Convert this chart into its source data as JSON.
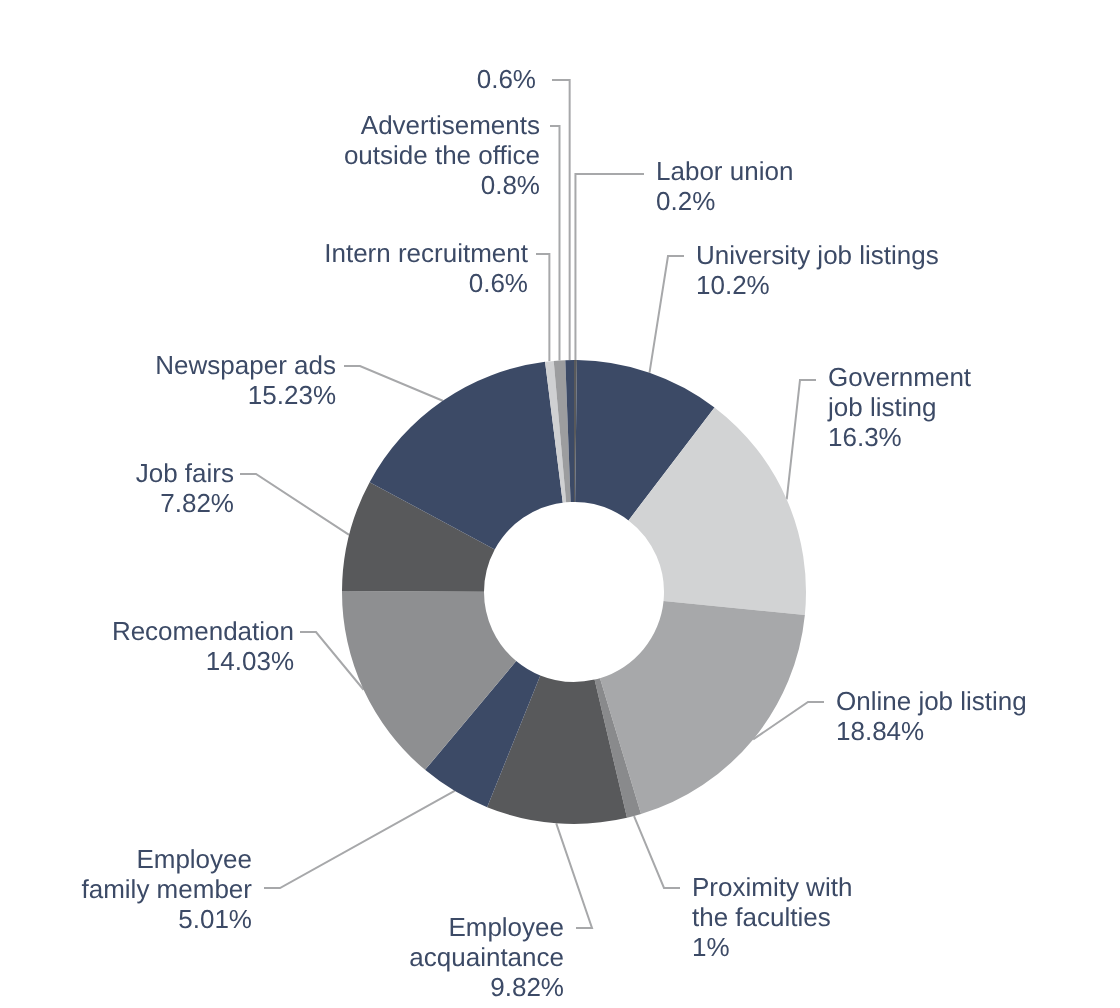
{
  "chart_data": {
    "type": "donut",
    "categories": [
      "Labor union",
      "University job listings",
      "Government\njob listing",
      "Online job listing",
      "Proximity with\nthe faculties",
      "Employee\nacquaintance",
      "Employee\nfamily member",
      "Recomendation",
      "Job fairs",
      "Newspaper ads",
      "Intern recruitment",
      "Advertisements\noutside the office",
      null
    ],
    "values": [
      0.2,
      10.2,
      16.3,
      18.84,
      1,
      9.82,
      5.01,
      14.03,
      7.82,
      15.23,
      0.6,
      0.8,
      0.6
    ],
    "value_labels": [
      "0.2%",
      "10.2%",
      "16.3%",
      "18.84%",
      "1%",
      "9.82%",
      "5.01%",
      "14.03%",
      "7.82%",
      "15.23%",
      "0.6%",
      "0.8%",
      "0.6%"
    ],
    "colors": [
      "#58595b",
      "#3c4a66",
      "#d2d3d4",
      "#a7a8aa",
      "#898a8c",
      "#58595b",
      "#3c4a66",
      "#8e8f91",
      "#58595b",
      "#3c4a66",
      "#cfd0d2",
      "#9c9d9f",
      "#3c4a66"
    ],
    "legend": false
  }
}
